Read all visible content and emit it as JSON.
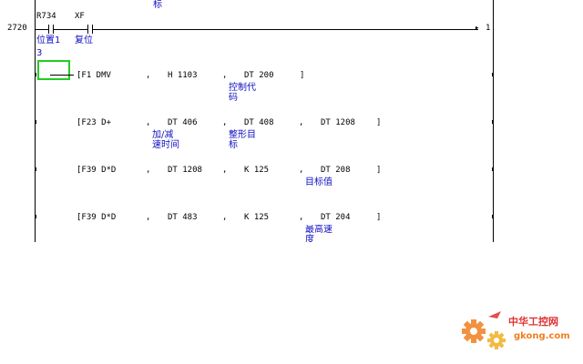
{
  "top_fragment": "标",
  "rung": {
    "step": "2720",
    "contacts": [
      {
        "device": "R734",
        "comment": "位置1"
      },
      {
        "device": "XF",
        "comment": "复位"
      }
    ],
    "comment_cont": "3",
    "end_marker": "1"
  },
  "instructions": [
    {
      "op": "[F1 DMV",
      "args": [
        {
          "sep": ",",
          "val": "H 1103",
          "comment": ""
        },
        {
          "sep": ",",
          "val": "DT 200",
          "comment": "控制代\n码"
        }
      ],
      "close": "]"
    },
    {
      "op": "[F23 D+",
      "args": [
        {
          "sep": ",",
          "val": "DT 406",
          "comment": "加/减\n速时间"
        },
        {
          "sep": ",",
          "val": "DT 408",
          "comment": "整形目\n标"
        },
        {
          "sep": ",",
          "val": "DT 1208",
          "comment": ""
        }
      ],
      "close": "]"
    },
    {
      "op": "[F39 D*D",
      "args": [
        {
          "sep": ",",
          "val": "DT 1208",
          "comment": ""
        },
        {
          "sep": ",",
          "val": "K 125",
          "comment": ""
        },
        {
          "sep": ",",
          "val": "DT 208",
          "comment": "目标值"
        }
      ],
      "close": "]"
    },
    {
      "op": "[F39 D*D",
      "args": [
        {
          "sep": ",",
          "val": "DT 483",
          "comment": ""
        },
        {
          "sep": ",",
          "val": "K 125",
          "comment": ""
        },
        {
          "sep": ",",
          "val": "DT 204",
          "comment": "最高速\n度"
        }
      ],
      "close": "]"
    }
  ],
  "watermark": {
    "title": "中华工控网",
    "url": "gkong.com"
  },
  "colors": {
    "comment": "#1010c0",
    "cursor": "#22cc22",
    "watermark_orange": "#f08020",
    "watermark_red": "#e03030"
  }
}
